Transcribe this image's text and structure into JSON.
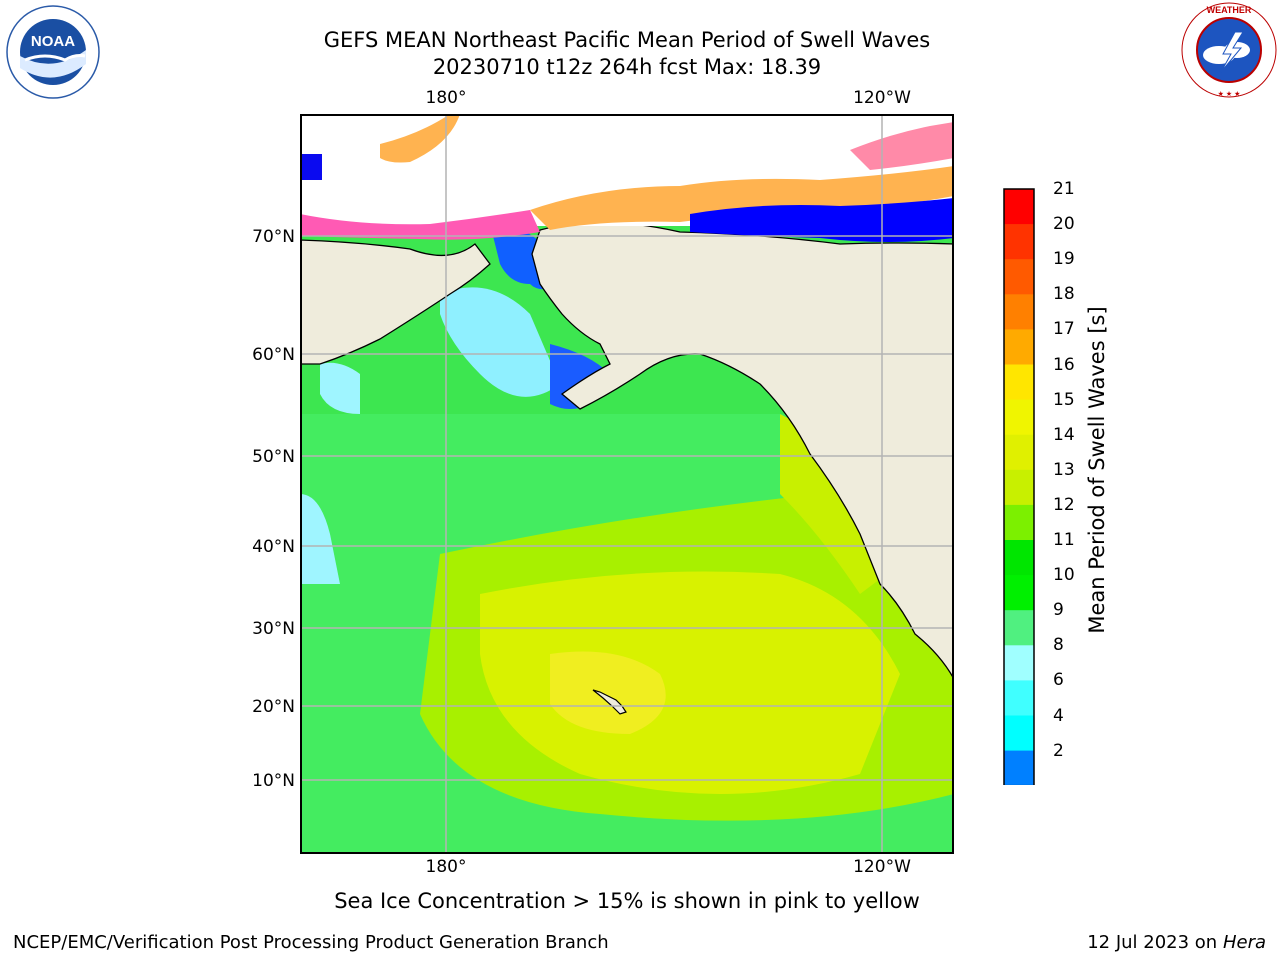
{
  "title": {
    "line1": "GEFS MEAN Northeast Pacific Mean Period of Swell Waves",
    "line2": "20230710 t12z 264h fcst   Max: 18.39"
  },
  "map": {
    "lon_ticks": [
      "180°",
      "120°W"
    ],
    "lat_ticks": [
      "70°N",
      "60°N",
      "50°N",
      "40°N",
      "30°N",
      "20°N",
      "10°N"
    ],
    "land_color": "#efecdc",
    "ice_note": "Sea Ice Concentration > 15% is shown in pink to yellow"
  },
  "colorbar": {
    "label": "Mean Period of Swell Waves [s]",
    "ticks": [
      "21",
      "20",
      "19",
      "18",
      "17",
      "16",
      "15",
      "14",
      "13",
      "12",
      "11",
      "10",
      "9",
      "8",
      "6",
      "4",
      "2"
    ],
    "colors": [
      "#ff0000",
      "#ff3300",
      "#ff5a00",
      "#ff8000",
      "#ffaa00",
      "#ffe600",
      "#f0f500",
      "#e0f000",
      "#c8f000",
      "#7cf000",
      "#00e600",
      "#00f000",
      "#50f080",
      "#a0ffff",
      "#40ffff",
      "#00ffff",
      "#0080ff"
    ],
    "extend_color": "#0000ff"
  },
  "footer": {
    "left": "NCEP/EMC/Verification Post Processing Product Generation Branch",
    "right_date": "12 Jul 2023 on ",
    "right_host": "Hera"
  },
  "logos": {
    "left": "NOAA",
    "right": "NATIONAL WEATHER SERVICE"
  }
}
